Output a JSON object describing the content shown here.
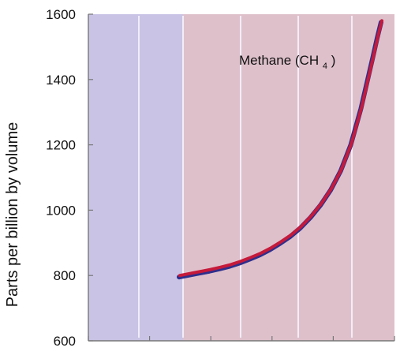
{
  "chart_data": {
    "type": "line",
    "title": "",
    "xlabel": "",
    "ylabel": "Parts per billion by volume",
    "ylim": [
      600,
      1600
    ],
    "yticks": [
      600,
      800,
      1000,
      1200,
      1400,
      1600
    ],
    "x_tick_count": 6,
    "grid": true,
    "series": [
      {
        "name": "Methane (CH4)",
        "label_main": "Methane (CH",
        "label_sub": "4",
        "label_suffix": ")",
        "x": [
          0,
          0.05,
          0.1,
          0.15,
          0.2,
          0.25,
          0.3,
          0.35,
          0.4,
          0.45,
          0.5,
          0.55,
          0.6,
          0.65,
          0.7,
          0.75,
          0.8,
          0.85,
          0.9,
          0.93,
          0.96,
          0.98,
          1
        ],
        "values": [
          800,
          806,
          812,
          818,
          825,
          833,
          843,
          855,
          868,
          884,
          903,
          924,
          950,
          982,
          1020,
          1066,
          1125,
          1205,
          1315,
          1395,
          1475,
          1530,
          1580
        ]
      }
    ],
    "colors": {
      "left_region": "#c9c3e5",
      "right_region": "#dec0cb",
      "line_main": "#c61a3a",
      "line_shadow": "#2d2f8d",
      "grid": "#f5f2fb",
      "axis": "#777777"
    }
  }
}
